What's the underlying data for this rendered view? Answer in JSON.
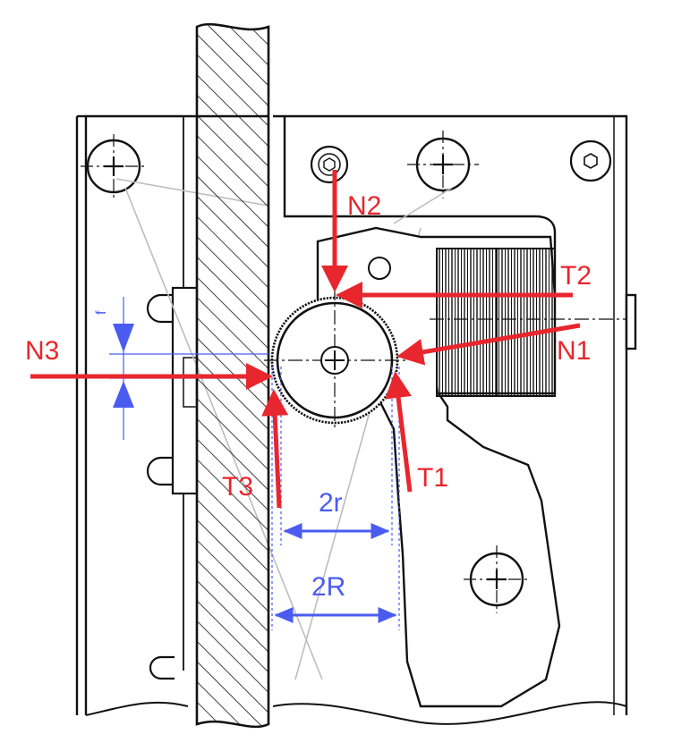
{
  "labels": {
    "n1": "N1",
    "n2": "N2",
    "n3": "N3",
    "t1": "T1",
    "t2": "T2",
    "t3": "T3",
    "two_r_small": "2r",
    "two_r_large": "2R",
    "f": "f"
  },
  "colors": {
    "force": "#e8262d",
    "dimension": "#4a5cf0",
    "outline": "#111111",
    "construction": "#bdbdbd"
  }
}
